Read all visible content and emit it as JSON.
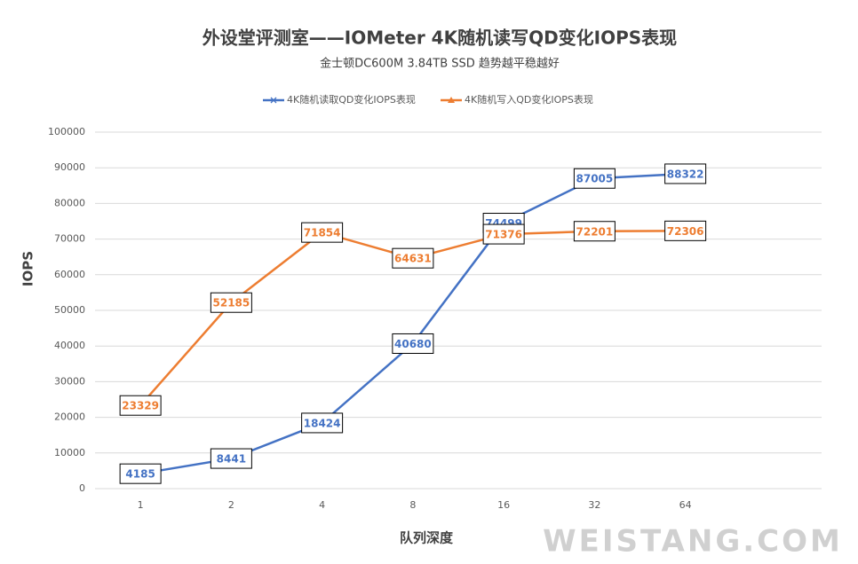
{
  "chart_data": {
    "type": "line",
    "title": "外设堂评测室——IOMeter  4K随机读写QD变化IOPS表现",
    "subtitle": "金士顿DC600M 3.84TB SSD 趋势越平稳越好",
    "x_label": "队列深度",
    "y_label": "IOPS",
    "watermark": "WEISTANG.COM",
    "categories": [
      "1",
      "2",
      "4",
      "8",
      "16",
      "32",
      "64"
    ],
    "series": [
      {
        "name": "4K随机读取QD变化IOPS表现",
        "color": "#4472c4",
        "marker": "x",
        "values": [
          4185,
          8441,
          18424,
          40680,
          74499,
          87005,
          88322
        ]
      },
      {
        "name": "4K随机写入QD变化IOPS表现",
        "color": "#ed7d31",
        "marker": "triangle",
        "values": [
          23329,
          52185,
          71854,
          64631,
          71376,
          72201,
          72306
        ]
      }
    ],
    "ylim": [
      0,
      100000
    ],
    "yticks": [
      0,
      10000,
      20000,
      30000,
      40000,
      50000,
      60000,
      70000,
      80000,
      90000,
      100000
    ],
    "grid": true,
    "legend": "top"
  }
}
